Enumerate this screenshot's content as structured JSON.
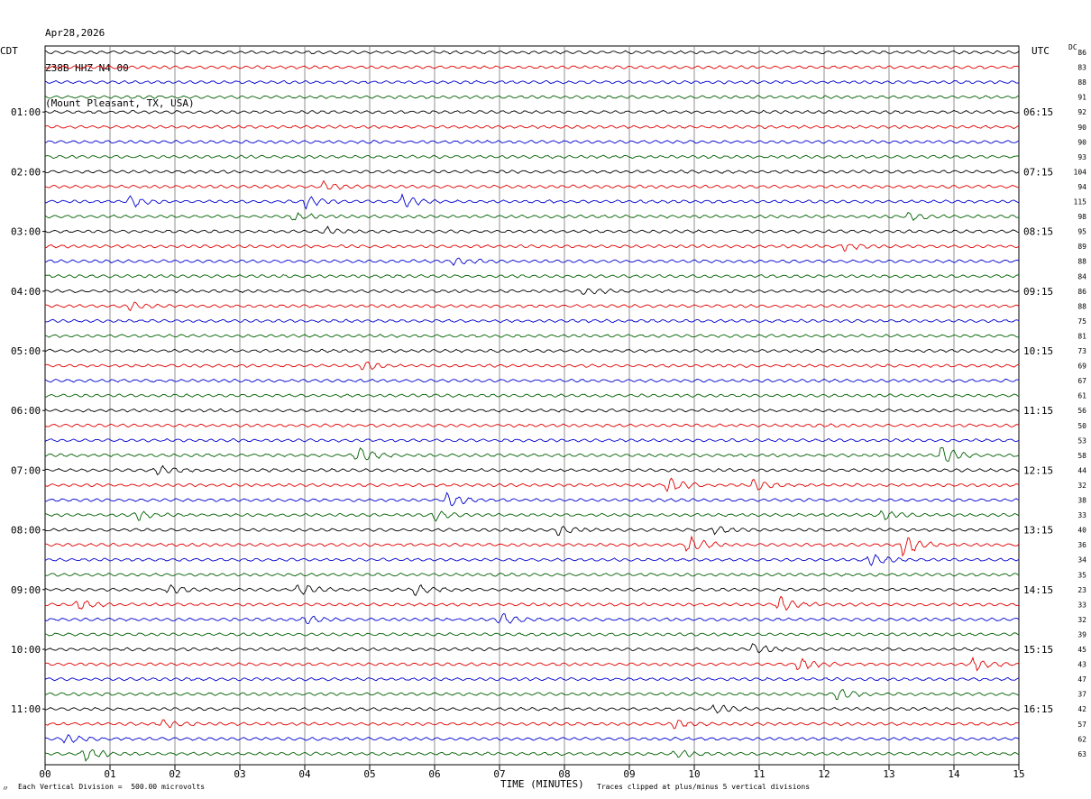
{
  "header": {
    "date": "Apr28,2026",
    "station": "Z38B HHZ N4 00",
    "location": "(Mount Pleasant, TX, USA)"
  },
  "left_tz": "CDT",
  "right_tz": "UTC",
  "dc_label": "DC",
  "footer": {
    "scale_note": "Each Vertical Division =  500.00 microvolts",
    "clip_note": "Traces clipped at plus/minus 5 vertical divisions",
    "mark": "〃"
  },
  "chart_data": {
    "type": "line",
    "title": "",
    "xlabel": "TIME (MINUTES)",
    "x_ticks": [
      "00",
      "01",
      "02",
      "03",
      "04",
      "05",
      "06",
      "07",
      "08",
      "09",
      "10",
      "11",
      "12",
      "13",
      "14",
      "15"
    ],
    "xlim": [
      0,
      15
    ],
    "left_time_labels": [
      "01:00",
      "02:00",
      "03:00",
      "04:00",
      "05:00",
      "06:00",
      "07:00",
      "08:00",
      "09:00",
      "10:00",
      "11:00"
    ],
    "right_time_labels": [
      "06:15",
      "07:15",
      "08:15",
      "09:15",
      "10:15",
      "11:15",
      "12:15",
      "13:15",
      "14:15",
      "15:15",
      "16:15"
    ],
    "trace_colors": [
      "#000000",
      "#e00000",
      "#0000d0",
      "#006000"
    ],
    "dc_offsets": [
      "86",
      "83",
      "88",
      "91",
      "92",
      "90",
      "90",
      "93",
      "104",
      "94",
      "115",
      "98",
      "95",
      "89",
      "88",
      "84",
      "86",
      "88",
      "75",
      "81",
      "73",
      "69",
      "67",
      "61",
      "56",
      "50",
      "53",
      "58",
      "44",
      "32",
      "38",
      "33",
      "40",
      "36",
      "34",
      "35",
      "23",
      "33",
      "32",
      "39",
      "45",
      "43",
      "47",
      "37",
      "42",
      "57",
      "62",
      "63"
    ],
    "events": [
      {
        "trace": 9,
        "minute": 4.3,
        "amp": 1.6
      },
      {
        "trace": 10,
        "minute": 1.3,
        "amp": 2.0
      },
      {
        "trace": 10,
        "minute": 4.0,
        "amp": 2.2
      },
      {
        "trace": 10,
        "minute": 5.5,
        "amp": 2.0
      },
      {
        "trace": 11,
        "minute": 3.8,
        "amp": 1.5
      },
      {
        "trace": 11,
        "minute": 13.3,
        "amp": 1.6
      },
      {
        "trace": 12,
        "minute": 4.3,
        "amp": 1.3
      },
      {
        "trace": 13,
        "minute": 12.3,
        "amp": 1.5
      },
      {
        "trace": 14,
        "minute": 6.3,
        "amp": 1.4
      },
      {
        "trace": 16,
        "minute": 8.3,
        "amp": 1.3
      },
      {
        "trace": 17,
        "minute": 1.3,
        "amp": 1.3
      },
      {
        "trace": 21,
        "minute": 4.9,
        "amp": 1.6
      },
      {
        "trace": 27,
        "minute": 4.8,
        "amp": 3.0
      },
      {
        "trace": 27,
        "minute": 13.8,
        "amp": 3.5
      },
      {
        "trace": 28,
        "minute": 1.7,
        "amp": 2.2
      },
      {
        "trace": 29,
        "minute": 9.6,
        "amp": 3.0
      },
      {
        "trace": 29,
        "minute": 10.9,
        "amp": 2.2
      },
      {
        "trace": 30,
        "minute": 6.2,
        "amp": 2.6
      },
      {
        "trace": 31,
        "minute": 1.4,
        "amp": 1.8
      },
      {
        "trace": 31,
        "minute": 6.0,
        "amp": 2.2
      },
      {
        "trace": 31,
        "minute": 12.9,
        "amp": 1.8
      },
      {
        "trace": 32,
        "minute": 7.9,
        "amp": 1.6
      },
      {
        "trace": 32,
        "minute": 10.3,
        "amp": 1.6
      },
      {
        "trace": 33,
        "minute": 9.9,
        "amp": 3.5
      },
      {
        "trace": 33,
        "minute": 13.2,
        "amp": 4.5
      },
      {
        "trace": 34,
        "minute": 12.7,
        "amp": 2.5
      },
      {
        "trace": 36,
        "minute": 3.9,
        "amp": 2.5
      },
      {
        "trace": 36,
        "minute": 5.7,
        "amp": 2.2
      },
      {
        "trace": 36,
        "minute": 1.9,
        "amp": 1.6
      },
      {
        "trace": 37,
        "minute": 0.5,
        "amp": 2.2
      },
      {
        "trace": 37,
        "minute": 11.3,
        "amp": 2.8
      },
      {
        "trace": 38,
        "minute": 7.0,
        "amp": 2.6
      },
      {
        "trace": 38,
        "minute": 4.0,
        "amp": 1.6
      },
      {
        "trace": 40,
        "minute": 10.9,
        "amp": 2.0
      },
      {
        "trace": 41,
        "minute": 11.6,
        "amp": 2.8
      },
      {
        "trace": 41,
        "minute": 14.3,
        "amp": 2.2
      },
      {
        "trace": 43,
        "minute": 12.2,
        "amp": 2.2
      },
      {
        "trace": 44,
        "minute": 10.3,
        "amp": 1.6
      },
      {
        "trace": 45,
        "minute": 9.7,
        "amp": 1.6
      },
      {
        "trace": 45,
        "minute": 1.8,
        "amp": 1.4
      },
      {
        "trace": 46,
        "minute": 0.3,
        "amp": 1.6
      },
      {
        "trace": 47,
        "minute": 0.6,
        "amp": 2.8
      },
      {
        "trace": 47,
        "minute": 9.7,
        "amp": 1.5
      }
    ]
  }
}
